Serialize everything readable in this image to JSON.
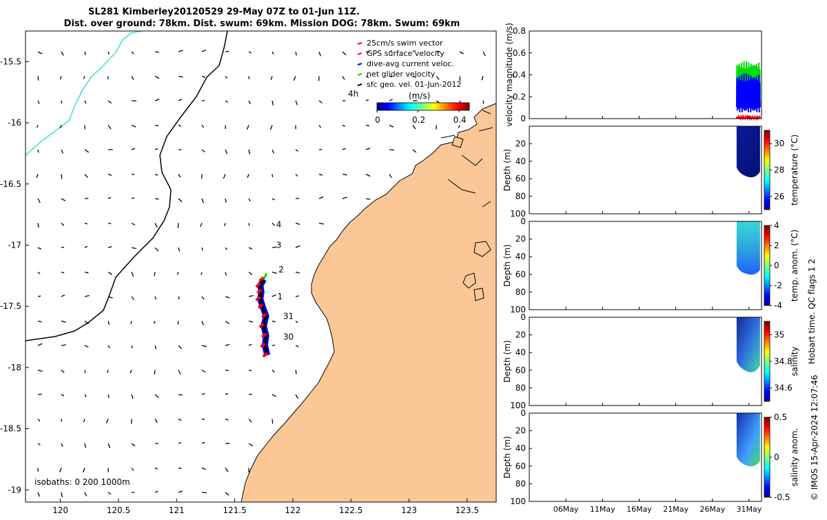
{
  "chart_data": [
    {
      "type": "map",
      "title": "SL281 Kimberley20120529 29-May 07Z to 01-Jun 11Z.",
      "subtitle": "Dist. over ground: 78km. Dist. swum: 69km. Mission DOG: 78km. Swum: 69km",
      "xlim": [
        119.7,
        123.75
      ],
      "ylim": [
        -19.1,
        -15.25
      ],
      "xticks": [
        120,
        120.5,
        121,
        121.5,
        122,
        122.5,
        123,
        123.5
      ],
      "yticks": [
        -15.5,
        -16,
        -16.5,
        -17,
        -17.5,
        -18,
        -18.5,
        -19
      ],
      "legend": [
        {
          "label": "25cm/s swim vector",
          "color": "#ff0000"
        },
        {
          "label": "GPS surface velocity",
          "color": "#cc00cc"
        },
        {
          "label": "dive-avg current veloc.",
          "color": "#0000ff"
        },
        {
          "label": "net glider velocity",
          "color": "#00dd00"
        },
        {
          "label": "sfc geo. vel. 01-Jun-2012",
          "color": "#000000"
        }
      ],
      "scale_label": "4h",
      "colorbar": {
        "label": "(m/s)",
        "ticks": [
          0,
          0.2,
          0.4
        ],
        "range": [
          0,
          0.45
        ]
      },
      "isobaths_label": "isobaths: 0   200  1000m",
      "track_day_labels": [
        {
          "text": "4",
          "lon": 121.78,
          "lat": -16.83
        },
        {
          "text": "3",
          "lon": 121.78,
          "lat": -17.0
        },
        {
          "text": "2",
          "lon": 121.8,
          "lat": -17.2
        },
        {
          "text": "1",
          "lon": 121.79,
          "lat": -17.42
        },
        {
          "text": "31",
          "lon": 121.84,
          "lat": -17.58
        },
        {
          "text": "30",
          "lon": 121.84,
          "lat": -17.75
        }
      ],
      "track": [
        [
          121.78,
          -17.9
        ],
        [
          121.76,
          -17.82
        ],
        [
          121.77,
          -17.74
        ],
        [
          121.75,
          -17.66
        ],
        [
          121.77,
          -17.58
        ],
        [
          121.74,
          -17.5
        ],
        [
          121.72,
          -17.44
        ],
        [
          121.73,
          -17.38
        ],
        [
          121.72,
          -17.33
        ],
        [
          121.75,
          -17.28
        ]
      ]
    },
    {
      "type": "line",
      "ylabel": "velocity magnitude (m/s)",
      "ylim": [
        0,
        0.8
      ],
      "yticks": [
        0,
        0.2,
        0.4,
        0.6,
        0.8
      ],
      "xticks": [
        "06May",
        "11May",
        "16May",
        "21May",
        "26May",
        "31May"
      ],
      "xlim_days": [
        1,
        32.7
      ],
      "series": [
        {
          "name": "net glider velocity",
          "color": "#00dd00",
          "x_days": [
            29.3,
            32.5
          ],
          "min": 0.2,
          "max": 0.53
        },
        {
          "name": "dive-avg current veloc.",
          "color": "#0000ff",
          "x_days": [
            29.3,
            32.5
          ],
          "min": 0.05,
          "max": 0.42
        },
        {
          "name": "25cm/s swim vector",
          "color": "#ff0000",
          "x_days": [
            29.3,
            32.5
          ],
          "min": 0.0,
          "max": 0.02
        }
      ]
    },
    {
      "type": "heatmap",
      "ylabel": "Depth (m)",
      "colorbar_label": "temperature (°C)",
      "ylim": [
        0,
        100
      ],
      "yticks": [
        20,
        40,
        60,
        80,
        100
      ],
      "colorbar_ticks": [
        26,
        28,
        30
      ],
      "colorbar_range": [
        25,
        31
      ],
      "x_days": [
        29.3,
        32.5
      ],
      "max_depth": [
        55,
        58,
        52
      ]
    },
    {
      "type": "heatmap",
      "ylabel": "Depth (m)",
      "colorbar_label": "temp. anom. (°C)",
      "ylim": [
        0,
        100
      ],
      "yticks": [
        0,
        20,
        40,
        60,
        80,
        100
      ],
      "colorbar_ticks": [
        4,
        2,
        0,
        -2,
        -4
      ],
      "colorbar_range": [
        -4,
        4
      ],
      "x_days": [
        29.3,
        32.5
      ],
      "max_depth": [
        58,
        60,
        55
      ]
    },
    {
      "type": "heatmap",
      "ylabel": "Depth (m)",
      "colorbar_label": "salinity",
      "ylim": [
        0,
        100
      ],
      "yticks": [
        0,
        20,
        40,
        60,
        80,
        100
      ],
      "colorbar_ticks": [
        35,
        34.8,
        34.6
      ],
      "colorbar_range": [
        34.5,
        35.1
      ],
      "x_days": [
        29.3,
        32.5
      ],
      "max_depth": [
        58,
        62,
        55
      ]
    },
    {
      "type": "heatmap",
      "ylabel": "Depth (m)",
      "colorbar_label": "salinity anom.",
      "ylim": [
        0,
        100
      ],
      "yticks": [
        0,
        20,
        40,
        60,
        80,
        100
      ],
      "colorbar_ticks": [
        0.5,
        0,
        -0.5
      ],
      "colorbar_range": [
        -0.5,
        0.5
      ],
      "x_days": [
        29.3,
        32.5
      ],
      "xticks": [
        "06May",
        "11May",
        "16May",
        "21May",
        "26May",
        "31May"
      ],
      "max_depth": [
        57,
        60,
        54
      ]
    }
  ],
  "footer": {
    "qc_label": "Hobart time. QC flags 1  2",
    "credit": "© IMOS 15-Apr-2024 12:07:46"
  }
}
